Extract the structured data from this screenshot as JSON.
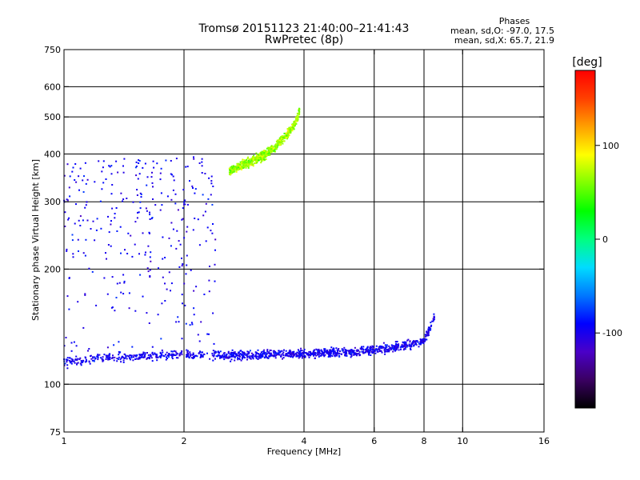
{
  "header": {
    "title": "Tromsø 20151123 21:40:00–21:41:43",
    "subtitle": "RwPretec (8p)"
  },
  "stats": {
    "heading": "Phases",
    "line_o": "mean, sd,O: -97.0, 17.5",
    "line_x": "mean, sd,X:  65.7, 21.9"
  },
  "chart_data": {
    "type": "scatter",
    "xlabel": "Frequency [MHz]",
    "ylabel": "Stationary phase Virtual Height [km]",
    "x_scale": "log",
    "y_scale": "log",
    "xlim": [
      1,
      16
    ],
    "ylim": [
      75,
      750
    ],
    "x_ticks": [
      1,
      2,
      4,
      6,
      8,
      10,
      16
    ],
    "x_tick_labels": [
      "1",
      "2",
      "4",
      "6",
      "8",
      "10",
      "16"
    ],
    "x_gridlines": [
      2,
      4,
      6,
      8,
      10
    ],
    "y_ticks": [
      75,
      100,
      200,
      300,
      400,
      500,
      600,
      750
    ],
    "y_tick_labels": [
      "75",
      "100",
      "200",
      "300",
      "400",
      "500",
      "600",
      "750"
    ],
    "y_gridlines": [
      100,
      200,
      300,
      400,
      500,
      600
    ],
    "grid": true,
    "colorbar": {
      "label": "[deg]",
      "range": [
        -180,
        180
      ],
      "ticks": [
        100,
        0,
        -100
      ],
      "tick_labels": [
        "100",
        "0",
        "-100"
      ],
      "colormap": [
        "#000000",
        "#3a0062",
        "#4a00c8",
        "#0000ff",
        "#0078ff",
        "#00dcff",
        "#00ff80",
        "#00ff00",
        "#80ff00",
        "#ffff00",
        "#ffa000",
        "#ff4000",
        "#ff0000"
      ]
    },
    "series": [
      {
        "name": "O",
        "phase_mean": -97.0,
        "phase_sd": 17.5,
        "trace_x": [
          1.0,
          1.2,
          1.5,
          1.8,
          2.0,
          2.3,
          2.6,
          3.0,
          3.5,
          4.0,
          4.5,
          5.0,
          5.5,
          6.0,
          6.5,
          7.0,
          7.5,
          8.0,
          8.5
        ],
        "trace_y": [
          114,
          117,
          118,
          119,
          120,
          119,
          119,
          119,
          120,
          120,
          121,
          121,
          122,
          123,
          124,
          126,
          128,
          130,
          150
        ]
      },
      {
        "name": "X",
        "phase_mean": 65.7,
        "phase_sd": 21.9,
        "trace_x": [
          2.6,
          2.8,
          3.0,
          3.2,
          3.4,
          3.6,
          3.8,
          3.9
        ],
        "trace_y": [
          360,
          375,
          385,
          400,
          420,
          445,
          480,
          520
        ]
      }
    ]
  }
}
